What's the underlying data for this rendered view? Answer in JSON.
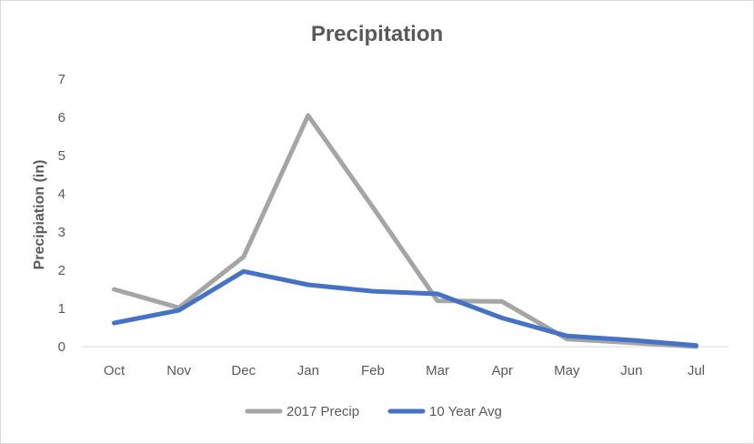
{
  "chart_data": {
    "type": "line",
    "title": "Precipitation",
    "xlabel": "",
    "ylabel": "Precipiation (in)",
    "categories": [
      "Oct",
      "Nov",
      "Dec",
      "Jan",
      "Feb",
      "Mar",
      "Apr",
      "May",
      "Jun",
      "Jul"
    ],
    "ylim": [
      0,
      7
    ],
    "yticks": [
      "0",
      "1",
      "2",
      "3",
      "4",
      "5",
      "6",
      "7"
    ],
    "grid": false,
    "legend_position": "bottom",
    "series": [
      {
        "name": "2017 Precip",
        "color": "#a5a5a5",
        "values": [
          1.5,
          1.02,
          2.35,
          6.05,
          3.65,
          1.2,
          1.18,
          0.2,
          0.1,
          0.0
        ]
      },
      {
        "name": "10 Year Avg",
        "color": "#4472c4",
        "values": [
          0.62,
          0.95,
          1.97,
          1.62,
          1.45,
          1.38,
          0.75,
          0.28,
          0.17,
          0.03
        ]
      }
    ]
  }
}
